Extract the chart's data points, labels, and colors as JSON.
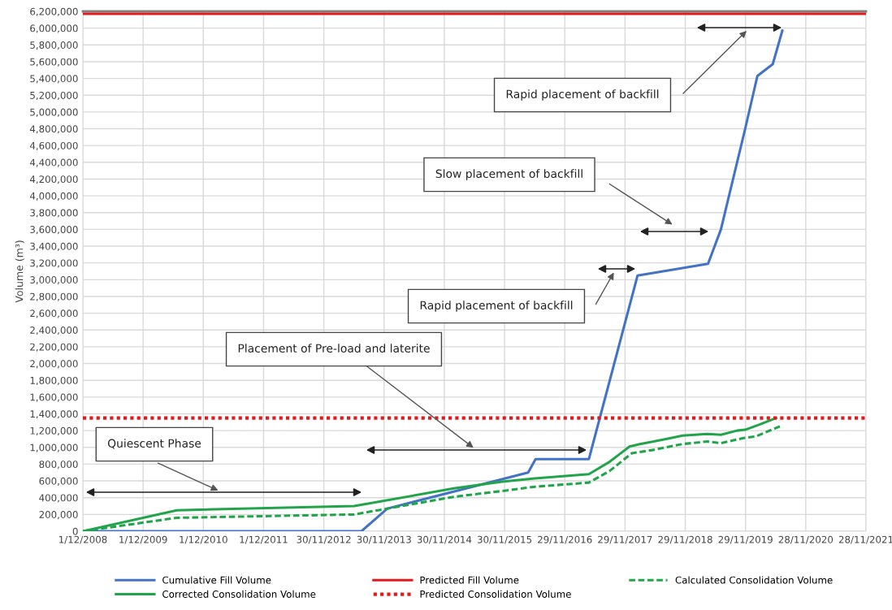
{
  "chart_data": {
    "type": "line",
    "ylabel": "Volume (m³)",
    "series": [
      {
        "name": "Cumulative Fill Volume",
        "color": "#4472c4",
        "line_style": "solid",
        "x": [
          "2008-12-01",
          "2013-07-16",
          "2013-12-20",
          "2016-04-21",
          "2016-06-05",
          "2017-04-24",
          "2018-02-13",
          "2019-04-16",
          "2019-07-03",
          "2019-11-27",
          "2020-02-09",
          "2020-05-12",
          "2020-07-09"
        ],
        "values": [
          0,
          0,
          270000,
          700000,
          860000,
          860000,
          3050000,
          3190000,
          3600000,
          4800000,
          5430000,
          5570000,
          5970000
        ]
      },
      {
        "name": "Predicted Fill Volume",
        "color": "#e31a1c",
        "line_style": "solid",
        "x": [
          "2008-12-01",
          "2021-11-28"
        ],
        "values": [
          6170000,
          6170000
        ]
      },
      {
        "name": "Calculated Consolidation Volume",
        "color": "#22a54a",
        "line_style": "dashed",
        "x": [
          "2008-12-01",
          "2010-06-23",
          "2013-06-02",
          "2015-01-26",
          "2015-11-16",
          "2016-05-31",
          "2017-04-24",
          "2017-08-29",
          "2018-01-09",
          "2018-05-22",
          "2018-08-28",
          "2018-11-14",
          "2019-04-11",
          "2019-07-03",
          "2019-11-12",
          "2020-01-30",
          "2020-07-05"
        ],
        "values": [
          0,
          160000,
          200000,
          410000,
          480000,
          530000,
          580000,
          720000,
          930000,
          970000,
          1010000,
          1040000,
          1070000,
          1050000,
          1110000,
          1130000,
          1260000
        ]
      },
      {
        "name": "Corrected Consolidation Volume",
        "color": "#22a54a",
        "line_style": "solid",
        "x": [
          "2008-12-01",
          "2010-06-23",
          "2013-06-02",
          "2015-01-26",
          "2015-11-16",
          "2016-05-31",
          "2017-04-24",
          "2017-08-29",
          "2017-12-26",
          "2018-02-27",
          "2018-05-22",
          "2018-08-28",
          "2018-11-14",
          "2019-04-11",
          "2019-07-03",
          "2019-10-09",
          "2019-11-27",
          "2020-02-19",
          "2020-06-01"
        ],
        "values": [
          0,
          250000,
          300000,
          510000,
          590000,
          630000,
          680000,
          830000,
          1010000,
          1040000,
          1070000,
          1110000,
          1140000,
          1160000,
          1150000,
          1200000,
          1210000,
          1270000,
          1350000
        ]
      },
      {
        "name": "Predicted Consolidation Volume",
        "color": "#e31a1c",
        "line_style": "dotted",
        "x": [
          "2008-12-01",
          "2021-11-28"
        ],
        "values": [
          1350000,
          1350000
        ]
      }
    ],
    "annotations": [
      "Rapid placement of backfill",
      "Slow placement of backfill",
      "Rapid placement of backfill",
      "Placement of Pre-load and laterite",
      "Quiescent Phase"
    ],
    "xlim": [
      "2008-12-01",
      "2021-11-28"
    ],
    "xticks": [
      {
        "value": "2008-12-01",
        "label": "1/12/2008"
      },
      {
        "value": "2009-12-01",
        "label": "1/12/2009"
      },
      {
        "value": "2010-12-01",
        "label": "1/12/2010"
      },
      {
        "value": "2011-12-01",
        "label": "1/12/2011"
      },
      {
        "value": "2012-11-30",
        "label": "30/11/2012"
      },
      {
        "value": "2013-11-30",
        "label": "30/11/2013"
      },
      {
        "value": "2014-11-30",
        "label": "30/11/2014"
      },
      {
        "value": "2015-11-30",
        "label": "30/11/2015"
      },
      {
        "value": "2016-11-29",
        "label": "29/11/2016"
      },
      {
        "value": "2017-11-29",
        "label": "29/11/2017"
      },
      {
        "value": "2018-11-29",
        "label": "29/11/2018"
      },
      {
        "value": "2019-11-29",
        "label": "29/11/2019"
      },
      {
        "value": "2020-11-28",
        "label": "28/11/2020"
      },
      {
        "value": "2021-11-28",
        "label": "28/11/2021"
      }
    ],
    "ylim": [
      0,
      6200000
    ],
    "yticks": [
      0,
      {
        "value": 200000,
        "label": "200,000"
      },
      {
        "value": 400000,
        "label": "400,000"
      },
      {
        "value": 600000,
        "label": "600,000"
      },
      {
        "value": 800000,
        "label": "800,000"
      },
      {
        "value": 1000000,
        "label": "1,000,000"
      },
      {
        "value": 1200000,
        "label": "1,200,000"
      },
      {
        "value": 1400000,
        "label": "1,400,000"
      },
      {
        "value": 1600000,
        "label": "1,600,000"
      },
      {
        "value": 1800000,
        "label": "1,800,000"
      },
      {
        "value": 2000000,
        "label": "2,000,000"
      },
      {
        "value": 2200000,
        "label": "2,200,000"
      },
      {
        "value": 2400000,
        "label": "2,400,000"
      },
      {
        "value": 2600000,
        "label": "2,600,000"
      },
      {
        "value": 2800000,
        "label": "2,800,000"
      },
      {
        "value": 3000000,
        "label": "3,000,000"
      },
      {
        "value": 3200000,
        "label": "3,200,000"
      },
      {
        "value": 3400000,
        "label": "3,400,000"
      },
      {
        "value": 3600000,
        "label": "3,600,000"
      },
      {
        "value": 3800000,
        "label": "3,800,000"
      },
      {
        "value": 4000000,
        "label": "4,000,000"
      },
      {
        "value": 4200000,
        "label": "4,200,000"
      },
      {
        "value": 4400000,
        "label": "4,400,000"
      },
      {
        "value": 4600000,
        "label": "4,600,000"
      },
      {
        "value": 4800000,
        "label": "4,800,000"
      },
      {
        "value": 5000000,
        "label": "5,000,000"
      },
      {
        "value": 5200000,
        "label": "5,200,000"
      },
      {
        "value": 5400000,
        "label": "5,400,000"
      },
      {
        "value": 5600000,
        "label": "5,600,000"
      },
      {
        "value": 5800000,
        "label": "5,800,000"
      },
      {
        "value": 6000000,
        "label": "6,000,000"
      },
      {
        "value": 6200000,
        "label": "6,200,000"
      }
    ],
    "grid": true,
    "legend": "bottom",
    "marker": "none"
  }
}
